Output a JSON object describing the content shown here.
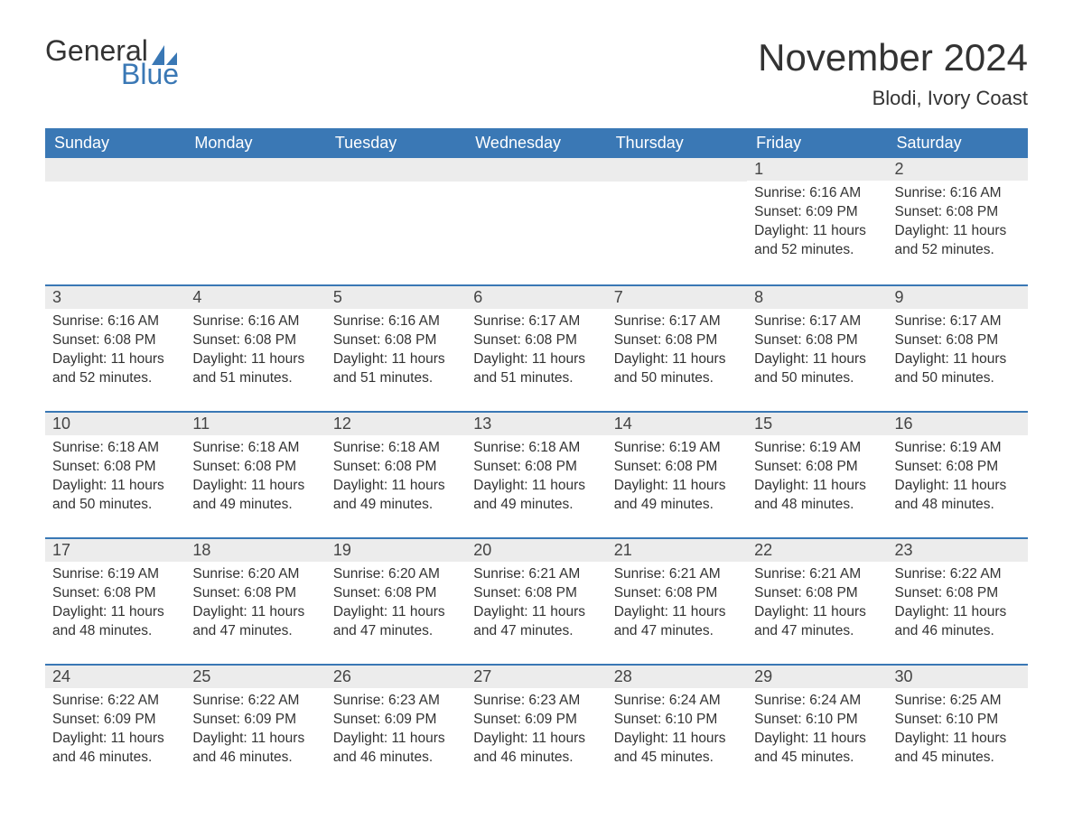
{
  "logo": {
    "text_general": "General",
    "text_blue": "Blue",
    "sail_color": "#3a78b5"
  },
  "title": "November 2024",
  "location": "Blodi, Ivory Coast",
  "colors": {
    "header_bg": "#3a78b5",
    "header_text": "#ffffff",
    "daynum_bg": "#ececec",
    "border_top": "#3a78b5",
    "body_text": "#333333",
    "background": "#ffffff"
  },
  "typography": {
    "title_fontsize": 42,
    "location_fontsize": 22,
    "dayheader_fontsize": 18,
    "daynum_fontsize": 18,
    "cell_fontsize": 15.5,
    "font_family": "Arial"
  },
  "day_headers": [
    "Sunday",
    "Monday",
    "Tuesday",
    "Wednesday",
    "Thursday",
    "Friday",
    "Saturday"
  ],
  "labels": {
    "sunrise": "Sunrise",
    "sunset": "Sunset",
    "daylight": "Daylight"
  },
  "weeks": [
    [
      null,
      null,
      null,
      null,
      null,
      {
        "num": "1",
        "sunrise": "6:16 AM",
        "sunset": "6:09 PM",
        "daylight": "11 hours and 52 minutes."
      },
      {
        "num": "2",
        "sunrise": "6:16 AM",
        "sunset": "6:08 PM",
        "daylight": "11 hours and 52 minutes."
      }
    ],
    [
      {
        "num": "3",
        "sunrise": "6:16 AM",
        "sunset": "6:08 PM",
        "daylight": "11 hours and 52 minutes."
      },
      {
        "num": "4",
        "sunrise": "6:16 AM",
        "sunset": "6:08 PM",
        "daylight": "11 hours and 51 minutes."
      },
      {
        "num": "5",
        "sunrise": "6:16 AM",
        "sunset": "6:08 PM",
        "daylight": "11 hours and 51 minutes."
      },
      {
        "num": "6",
        "sunrise": "6:17 AM",
        "sunset": "6:08 PM",
        "daylight": "11 hours and 51 minutes."
      },
      {
        "num": "7",
        "sunrise": "6:17 AM",
        "sunset": "6:08 PM",
        "daylight": "11 hours and 50 minutes."
      },
      {
        "num": "8",
        "sunrise": "6:17 AM",
        "sunset": "6:08 PM",
        "daylight": "11 hours and 50 minutes."
      },
      {
        "num": "9",
        "sunrise": "6:17 AM",
        "sunset": "6:08 PM",
        "daylight": "11 hours and 50 minutes."
      }
    ],
    [
      {
        "num": "10",
        "sunrise": "6:18 AM",
        "sunset": "6:08 PM",
        "daylight": "11 hours and 50 minutes."
      },
      {
        "num": "11",
        "sunrise": "6:18 AM",
        "sunset": "6:08 PM",
        "daylight": "11 hours and 49 minutes."
      },
      {
        "num": "12",
        "sunrise": "6:18 AM",
        "sunset": "6:08 PM",
        "daylight": "11 hours and 49 minutes."
      },
      {
        "num": "13",
        "sunrise": "6:18 AM",
        "sunset": "6:08 PM",
        "daylight": "11 hours and 49 minutes."
      },
      {
        "num": "14",
        "sunrise": "6:19 AM",
        "sunset": "6:08 PM",
        "daylight": "11 hours and 49 minutes."
      },
      {
        "num": "15",
        "sunrise": "6:19 AM",
        "sunset": "6:08 PM",
        "daylight": "11 hours and 48 minutes."
      },
      {
        "num": "16",
        "sunrise": "6:19 AM",
        "sunset": "6:08 PM",
        "daylight": "11 hours and 48 minutes."
      }
    ],
    [
      {
        "num": "17",
        "sunrise": "6:19 AM",
        "sunset": "6:08 PM",
        "daylight": "11 hours and 48 minutes."
      },
      {
        "num": "18",
        "sunrise": "6:20 AM",
        "sunset": "6:08 PM",
        "daylight": "11 hours and 47 minutes."
      },
      {
        "num": "19",
        "sunrise": "6:20 AM",
        "sunset": "6:08 PM",
        "daylight": "11 hours and 47 minutes."
      },
      {
        "num": "20",
        "sunrise": "6:21 AM",
        "sunset": "6:08 PM",
        "daylight": "11 hours and 47 minutes."
      },
      {
        "num": "21",
        "sunrise": "6:21 AM",
        "sunset": "6:08 PM",
        "daylight": "11 hours and 47 minutes."
      },
      {
        "num": "22",
        "sunrise": "6:21 AM",
        "sunset": "6:08 PM",
        "daylight": "11 hours and 47 minutes."
      },
      {
        "num": "23",
        "sunrise": "6:22 AM",
        "sunset": "6:08 PM",
        "daylight": "11 hours and 46 minutes."
      }
    ],
    [
      {
        "num": "24",
        "sunrise": "6:22 AM",
        "sunset": "6:09 PM",
        "daylight": "11 hours and 46 minutes."
      },
      {
        "num": "25",
        "sunrise": "6:22 AM",
        "sunset": "6:09 PM",
        "daylight": "11 hours and 46 minutes."
      },
      {
        "num": "26",
        "sunrise": "6:23 AM",
        "sunset": "6:09 PM",
        "daylight": "11 hours and 46 minutes."
      },
      {
        "num": "27",
        "sunrise": "6:23 AM",
        "sunset": "6:09 PM",
        "daylight": "11 hours and 46 minutes."
      },
      {
        "num": "28",
        "sunrise": "6:24 AM",
        "sunset": "6:10 PM",
        "daylight": "11 hours and 45 minutes."
      },
      {
        "num": "29",
        "sunrise": "6:24 AM",
        "sunset": "6:10 PM",
        "daylight": "11 hours and 45 minutes."
      },
      {
        "num": "30",
        "sunrise": "6:25 AM",
        "sunset": "6:10 PM",
        "daylight": "11 hours and 45 minutes."
      }
    ]
  ]
}
